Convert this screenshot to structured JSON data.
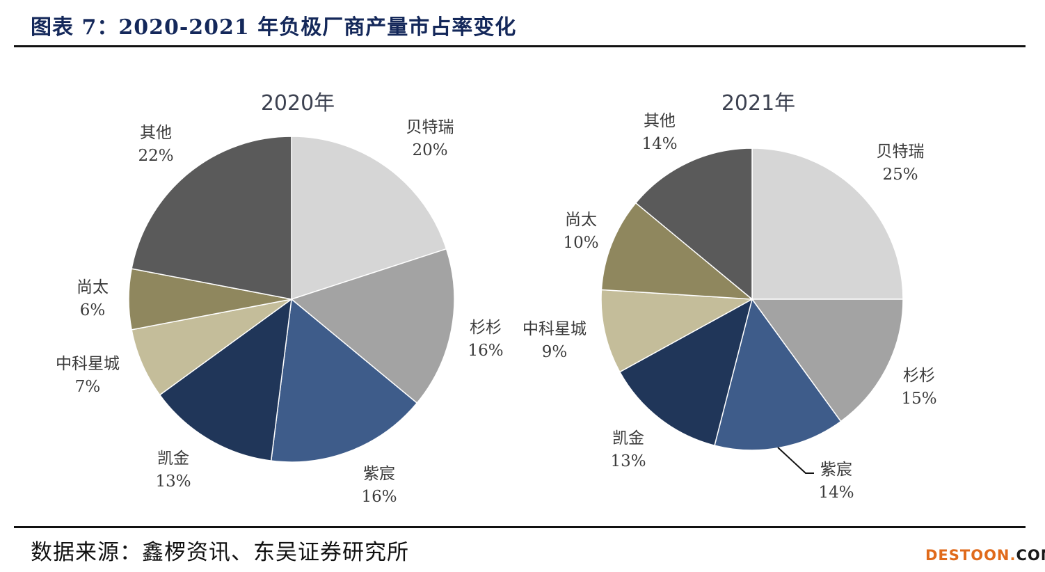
{
  "header": {
    "title": "图表 7：2020-2021 年负极厂商产量市占率变化"
  },
  "footer": {
    "source": "数据来源：鑫椤资讯、东吴证券研究所",
    "watermark_main": "DESTOON",
    "watermark_dot": ".",
    "watermark_tld": "COM",
    "watermark_main_color": "#e06a1b",
    "watermark_tld_color": "#1a1a1a"
  },
  "colors": {
    "贝特瑞": "#d6d6d6",
    "杉杉": "#a3a3a3",
    "紫宸": "#3e5c8a",
    "凯金": "#203659",
    "中科星城": "#c4bd9a",
    "尚太": "#8f875e",
    "其他": "#5a5a5a"
  },
  "chart_data": [
    {
      "type": "pie",
      "title": "2020年",
      "categories": [
        "贝特瑞",
        "杉杉",
        "紫宸",
        "凯金",
        "中科星城",
        "尚太",
        "其他"
      ],
      "values": [
        20,
        16,
        16,
        13,
        7,
        6,
        22
      ],
      "value_labels": [
        "20%",
        "16%",
        "16%",
        "13%",
        "7%",
        "6%",
        "22%"
      ],
      "start": "12 o'clock",
      "direction": "clockwise"
    },
    {
      "type": "pie",
      "title": "2021年",
      "categories": [
        "贝特瑞",
        "杉杉",
        "紫宸",
        "凯金",
        "中科星城",
        "尚太",
        "其他"
      ],
      "values": [
        25,
        15,
        14,
        13,
        9,
        10,
        14
      ],
      "value_labels": [
        "25%",
        "15%",
        "14%",
        "13%",
        "9%",
        "10%",
        "14%"
      ],
      "start": "12 o'clock",
      "direction": "clockwise"
    }
  ]
}
